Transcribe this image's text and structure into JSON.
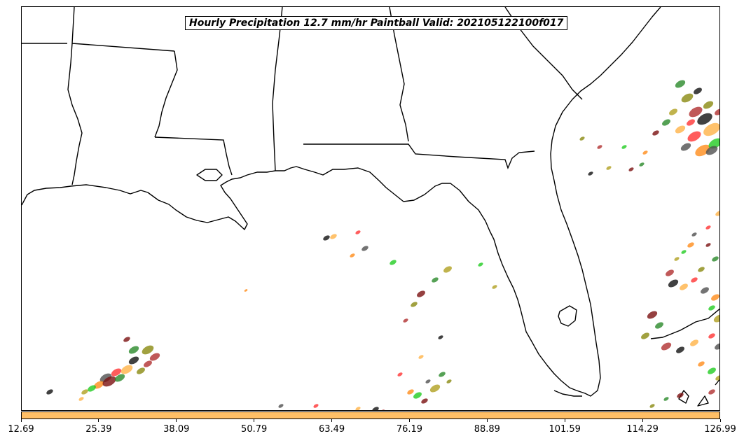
{
  "title": "Hourly Precipitation 12.7 mm/hr Paintball Valid: 202105122100f017",
  "colorbar": {
    "color": "#ffbf66",
    "ticks": [
      "12.69",
      "25.39",
      "38.09",
      "50.79",
      "63.49",
      "76.19",
      "88.89",
      "101.59",
      "114.29",
      "126.99"
    ]
  },
  "member_colors": [
    "#2a8a2a",
    "#22cc22",
    "#ff3333",
    "#b03030",
    "#7a1010",
    "#ff8c1a",
    "#ffb347",
    "#8a8a10",
    "#b0a020",
    "#505050",
    "#111111"
  ]
}
